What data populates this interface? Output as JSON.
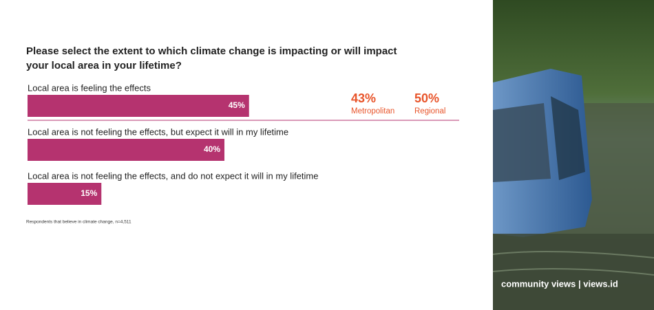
{
  "chart_data": {
    "type": "bar",
    "title": "Please select the extent to which climate change is impacting or will impact your local area in your lifetime?",
    "categories": [
      "Local area is feeling the effects",
      "Local area is not feeling the effects, but expect it will in my lifetime",
      "Local area is not feeling the effects, and do not expect it will in my lifetime"
    ],
    "values": [
      45,
      40,
      15
    ],
    "value_labels": [
      "45%",
      "40%",
      "15%"
    ],
    "color": "#b5336f",
    "xlim": [
      0,
      100
    ],
    "subgroups": {
      "categories": [
        "Metropolitan",
        "Regional"
      ],
      "values": [
        43,
        50
      ],
      "value_labels": [
        "43%",
        "50%"
      ],
      "color": "#e8542a"
    },
    "footnote": "Respondents that believe in climate change, n=4,511",
    "branding": "community views | views.id"
  }
}
